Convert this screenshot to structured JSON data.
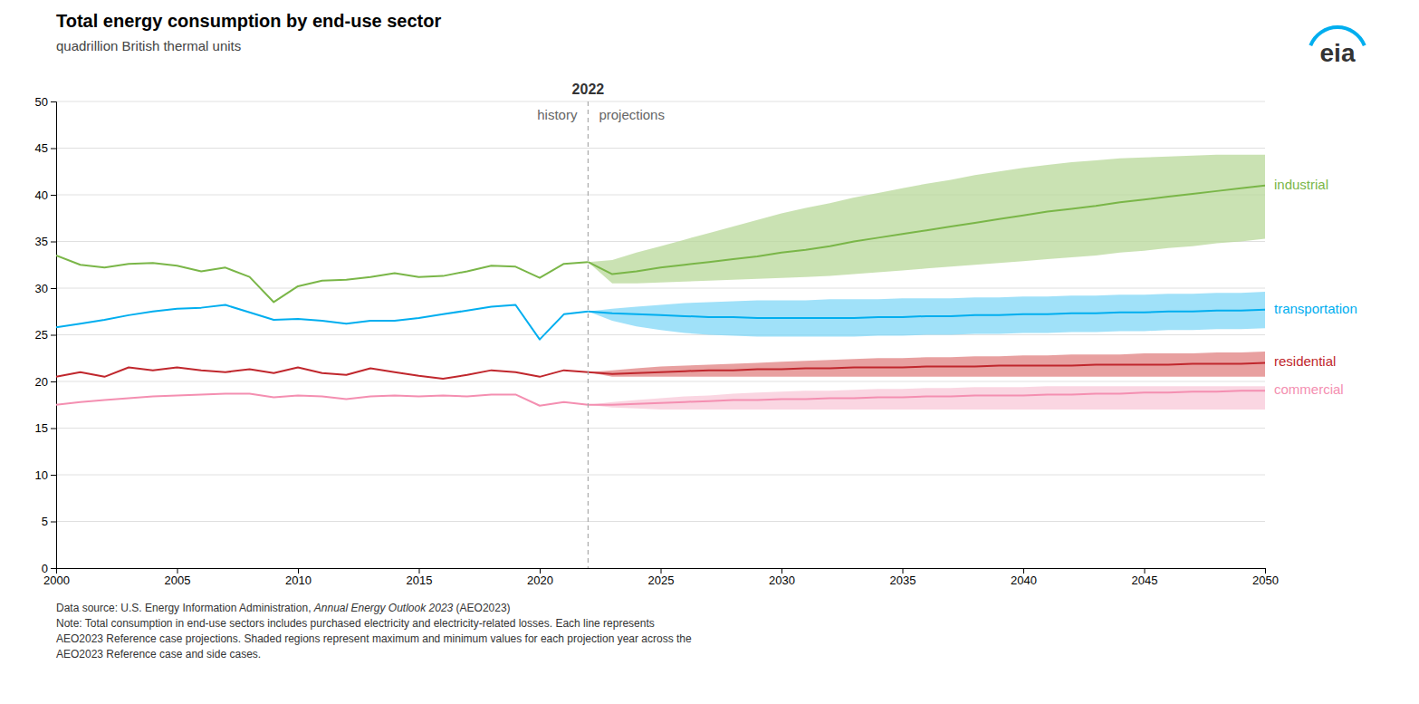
{
  "chart_data": {
    "type": "line",
    "title": "Total energy consumption by end-use sector",
    "subtitle": "quadrillion British thermal units",
    "split_year": 2022,
    "history_label": "history",
    "projections_label": "projections",
    "logo": "eia",
    "source": [
      "Data source: U.S. Energy Information Administration, ",
      "Annual Energy Outlook 2023",
      " (AEO2023)"
    ],
    "notes": [
      "Note: Total consumption in end-use sectors includes purchased electricity and electricity-related losses. Each line represents",
      "AEO2023 Reference case projections. Shaded regions represent maximum and minimum values for each projection year across the",
      "AEO2023 Reference case and side cases."
    ],
    "xlim": [
      2000,
      2050
    ],
    "ylim": [
      0,
      50
    ],
    "yticks": [
      0,
      5,
      10,
      15,
      20,
      25,
      30,
      35,
      40,
      45,
      50
    ],
    "xticks": [
      2000,
      2005,
      2010,
      2015,
      2020,
      2025,
      2030,
      2035,
      2040,
      2045,
      2050
    ],
    "grid": true,
    "series": [
      {
        "name": "industrial",
        "color": "#7ab648",
        "fill_color": "#b8d89a",
        "history": {
          "x": [
            2000,
            2001,
            2002,
            2003,
            2004,
            2005,
            2006,
            2007,
            2008,
            2009,
            2010,
            2011,
            2012,
            2013,
            2014,
            2015,
            2016,
            2017,
            2018,
            2019,
            2020,
            2021,
            2022
          ],
          "values": [
            33.5,
            32.5,
            32.2,
            32.6,
            32.7,
            32.4,
            31.8,
            32.2,
            31.2,
            28.5,
            30.2,
            30.8,
            30.9,
            31.2,
            31.6,
            31.2,
            31.3,
            31.8,
            32.4,
            32.3,
            31.1,
            32.6,
            32.8
          ]
        },
        "projection": {
          "x": [
            2022,
            2023,
            2024,
            2025,
            2026,
            2027,
            2028,
            2029,
            2030,
            2031,
            2032,
            2033,
            2034,
            2035,
            2036,
            2037,
            2038,
            2039,
            2040,
            2041,
            2042,
            2043,
            2044,
            2045,
            2046,
            2047,
            2048,
            2049,
            2050
          ],
          "values": [
            32.8,
            31.5,
            31.8,
            32.2,
            32.5,
            32.8,
            33.1,
            33.4,
            33.8,
            34.1,
            34.5,
            35.0,
            35.4,
            35.8,
            36.2,
            36.6,
            37.0,
            37.4,
            37.8,
            38.2,
            38.5,
            38.8,
            39.2,
            39.5,
            39.8,
            40.1,
            40.4,
            40.7,
            41.0
          ],
          "upper": [
            32.8,
            33.0,
            33.8,
            34.5,
            35.2,
            35.9,
            36.6,
            37.3,
            38.0,
            38.6,
            39.1,
            39.7,
            40.2,
            40.7,
            41.2,
            41.6,
            42.1,
            42.5,
            42.9,
            43.2,
            43.5,
            43.7,
            43.9,
            44.0,
            44.1,
            44.2,
            44.3,
            44.3,
            44.3
          ],
          "lower": [
            32.8,
            30.5,
            30.5,
            30.6,
            30.7,
            30.8,
            30.9,
            31.0,
            31.1,
            31.2,
            31.3,
            31.5,
            31.7,
            31.9,
            32.1,
            32.3,
            32.5,
            32.7,
            32.9,
            33.1,
            33.3,
            33.5,
            33.8,
            34.0,
            34.3,
            34.5,
            34.8,
            35.0,
            35.3
          ]
        }
      },
      {
        "name": "transportation",
        "color": "#00aeef",
        "fill_color": "#80d7f7",
        "history": {
          "x": [
            2000,
            2001,
            2002,
            2003,
            2004,
            2005,
            2006,
            2007,
            2008,
            2009,
            2010,
            2011,
            2012,
            2013,
            2014,
            2015,
            2016,
            2017,
            2018,
            2019,
            2020,
            2021,
            2022
          ],
          "values": [
            25.8,
            26.2,
            26.6,
            27.1,
            27.5,
            27.8,
            27.9,
            28.2,
            27.4,
            26.6,
            26.7,
            26.5,
            26.2,
            26.5,
            26.5,
            26.8,
            27.2,
            27.6,
            28.0,
            28.2,
            24.5,
            27.2,
            27.5
          ]
        },
        "projection": {
          "x": [
            2022,
            2023,
            2024,
            2025,
            2026,
            2027,
            2028,
            2029,
            2030,
            2031,
            2032,
            2033,
            2034,
            2035,
            2036,
            2037,
            2038,
            2039,
            2040,
            2041,
            2042,
            2043,
            2044,
            2045,
            2046,
            2047,
            2048,
            2049,
            2050
          ],
          "values": [
            27.5,
            27.3,
            27.2,
            27.1,
            27.0,
            26.9,
            26.9,
            26.8,
            26.8,
            26.8,
            26.8,
            26.8,
            26.9,
            26.9,
            27.0,
            27.0,
            27.1,
            27.1,
            27.2,
            27.2,
            27.3,
            27.3,
            27.4,
            27.4,
            27.5,
            27.5,
            27.6,
            27.6,
            27.7
          ],
          "upper": [
            27.5,
            27.8,
            28.0,
            28.2,
            28.4,
            28.5,
            28.6,
            28.7,
            28.7,
            28.7,
            28.8,
            28.8,
            28.8,
            28.9,
            28.9,
            28.9,
            29.0,
            29.0,
            29.1,
            29.1,
            29.2,
            29.2,
            29.3,
            29.3,
            29.4,
            29.4,
            29.5,
            29.5,
            29.6
          ],
          "lower": [
            27.5,
            26.5,
            25.9,
            25.5,
            25.2,
            25.0,
            24.9,
            24.8,
            24.8,
            24.8,
            24.8,
            24.8,
            24.9,
            24.9,
            25.0,
            25.0,
            25.1,
            25.1,
            25.2,
            25.2,
            25.3,
            25.3,
            25.4,
            25.4,
            25.5,
            25.5,
            25.6,
            25.6,
            25.7
          ]
        }
      },
      {
        "name": "residential",
        "color": "#c0272d",
        "fill_color": "#e08080",
        "history": {
          "x": [
            2000,
            2001,
            2002,
            2003,
            2004,
            2005,
            2006,
            2007,
            2008,
            2009,
            2010,
            2011,
            2012,
            2013,
            2014,
            2015,
            2016,
            2017,
            2018,
            2019,
            2020,
            2021,
            2022
          ],
          "values": [
            20.5,
            21.0,
            20.5,
            21.5,
            21.2,
            21.5,
            21.2,
            21.0,
            21.3,
            20.9,
            21.5,
            20.9,
            20.7,
            21.4,
            21.0,
            20.6,
            20.3,
            20.7,
            21.2,
            21.0,
            20.5,
            21.2,
            21.0
          ]
        },
        "projection": {
          "x": [
            2022,
            2023,
            2024,
            2025,
            2026,
            2027,
            2028,
            2029,
            2030,
            2031,
            2032,
            2033,
            2034,
            2035,
            2036,
            2037,
            2038,
            2039,
            2040,
            2041,
            2042,
            2043,
            2044,
            2045,
            2046,
            2047,
            2048,
            2049,
            2050
          ],
          "values": [
            21.0,
            20.8,
            20.9,
            21.0,
            21.1,
            21.2,
            21.2,
            21.3,
            21.3,
            21.4,
            21.4,
            21.5,
            21.5,
            21.5,
            21.6,
            21.6,
            21.6,
            21.7,
            21.7,
            21.7,
            21.7,
            21.8,
            21.8,
            21.8,
            21.8,
            21.9,
            21.9,
            21.9,
            22.0
          ],
          "upper": [
            21.0,
            21.2,
            21.4,
            21.6,
            21.7,
            21.8,
            21.9,
            22.0,
            22.1,
            22.2,
            22.3,
            22.4,
            22.5,
            22.5,
            22.6,
            22.6,
            22.7,
            22.7,
            22.8,
            22.8,
            22.9,
            22.9,
            22.9,
            23.0,
            23.0,
            23.0,
            23.1,
            23.1,
            23.2
          ],
          "lower": [
            21.0,
            20.5,
            20.5,
            20.5,
            20.5,
            20.5,
            20.5,
            20.5,
            20.5,
            20.5,
            20.5,
            20.5,
            20.5,
            20.5,
            20.5,
            20.5,
            20.5,
            20.5,
            20.5,
            20.5,
            20.5,
            20.5,
            20.5,
            20.5,
            20.5,
            20.5,
            20.5,
            20.5,
            20.5
          ]
        }
      },
      {
        "name": "commercial",
        "color": "#f48fb1",
        "fill_color": "#f8c8d8",
        "history": {
          "x": [
            2000,
            2001,
            2002,
            2003,
            2004,
            2005,
            2006,
            2007,
            2008,
            2009,
            2010,
            2011,
            2012,
            2013,
            2014,
            2015,
            2016,
            2017,
            2018,
            2019,
            2020,
            2021,
            2022
          ],
          "values": [
            17.5,
            17.8,
            18.0,
            18.2,
            18.4,
            18.5,
            18.6,
            18.7,
            18.7,
            18.3,
            18.5,
            18.4,
            18.1,
            18.4,
            18.5,
            18.4,
            18.5,
            18.4,
            18.6,
            18.6,
            17.4,
            17.8,
            17.5
          ]
        },
        "projection": {
          "x": [
            2022,
            2023,
            2024,
            2025,
            2026,
            2027,
            2028,
            2029,
            2030,
            2031,
            2032,
            2033,
            2034,
            2035,
            2036,
            2037,
            2038,
            2039,
            2040,
            2041,
            2042,
            2043,
            2044,
            2045,
            2046,
            2047,
            2048,
            2049,
            2050
          ],
          "values": [
            17.5,
            17.5,
            17.6,
            17.7,
            17.8,
            17.9,
            18.0,
            18.0,
            18.1,
            18.1,
            18.2,
            18.2,
            18.3,
            18.3,
            18.4,
            18.4,
            18.5,
            18.5,
            18.5,
            18.6,
            18.6,
            18.7,
            18.7,
            18.8,
            18.8,
            18.9,
            18.9,
            19.0,
            19.0
          ],
          "upper": [
            17.5,
            17.8,
            18.0,
            18.2,
            18.4,
            18.5,
            18.7,
            18.8,
            18.9,
            19.0,
            19.0,
            19.1,
            19.2,
            19.2,
            19.3,
            19.3,
            19.4,
            19.4,
            19.4,
            19.5,
            19.5,
            19.5,
            19.5,
            19.5,
            19.5,
            19.5,
            19.5,
            19.5,
            19.5
          ],
          "lower": [
            17.5,
            17.2,
            17.1,
            17.0,
            17.0,
            17.0,
            17.0,
            17.0,
            17.0,
            17.0,
            17.0,
            17.0,
            17.0,
            17.0,
            17.0,
            17.0,
            17.0,
            17.0,
            17.0,
            17.0,
            17.0,
            17.0,
            17.0,
            17.0,
            17.0,
            17.0,
            17.0,
            17.0,
            17.0
          ]
        }
      }
    ]
  }
}
